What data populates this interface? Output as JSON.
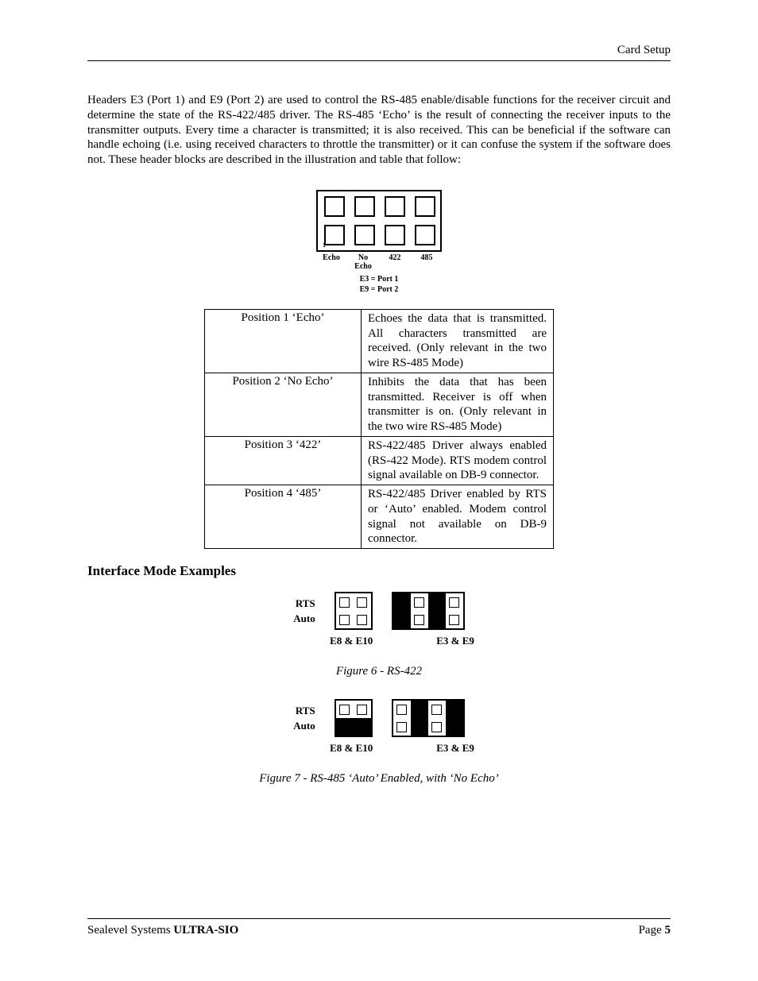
{
  "header": {
    "right": "Card Setup"
  },
  "footer": {
    "left_a": "Sealevel Systems ",
    "left_b": "ULTRA-SIO",
    "right_a": "Page ",
    "right_b": "5"
  },
  "paragraph": "Headers E3 (Port 1) and E9 (Port 2) are used to control the RS-485 enable/disable functions for the receiver circuit and determine the state of the RS-422/485 driver. The RS-485 ‘Echo’ is the result of connecting the receiver inputs to the transmitter outputs. Every time a character is transmitted; it is also received. This can be beneficial if the software can handle echoing (i.e. using received characters to throttle the transmitter) or it can confuse the system if the software does not. These header blocks are described in the illustration and table that follow:",
  "top_jumper": {
    "rows": 2,
    "cols": 4,
    "col_labels": [
      "Echo",
      "No\nEcho",
      "422",
      "485"
    ],
    "port_lines": [
      "E3 = Port 1",
      "E9 = Port 2"
    ]
  },
  "table": {
    "rows": [
      {
        "pos": "Position 1 ‘Echo’",
        "desc": "Echoes the data that is transmitted. All characters transmitted are received.  (Only relevant in the two wire RS-485 Mode)"
      },
      {
        "pos": "Position 2 ‘No Echo’",
        "desc": "Inhibits the data that has been transmitted. Receiver is off when transmitter is on. (Only relevant in the two wire RS-485 Mode)"
      },
      {
        "pos": "Position 3 ‘422’",
        "desc": "RS-422/485 Driver always enabled (RS-422 Mode). RTS modem control signal available on DB-9 connector."
      },
      {
        "pos": "Position 4 ‘485’",
        "desc": "RS-422/485 Driver enabled by RTS or ‘Auto’ enabled. Modem control signal not available on DB-9 connector."
      }
    ]
  },
  "section_heading": "Interface Mode Examples",
  "examples": [
    {
      "row_labels": [
        "RTS",
        "Auto"
      ],
      "blocks": [
        {
          "name": "E8 & E10",
          "cols": 2,
          "grid": [
            [
              "o",
              "o"
            ],
            [
              "o",
              "o"
            ]
          ]
        },
        {
          "name": "E3 & E9",
          "cols": 4,
          "grid": [
            [
              "f",
              "o",
              "f",
              "o"
            ],
            [
              "f",
              "o",
              "f",
              "o"
            ]
          ]
        }
      ],
      "caption": "Figure 6 - RS-422"
    },
    {
      "row_labels": [
        "RTS",
        "Auto"
      ],
      "blocks": [
        {
          "name": "E8 & E10",
          "cols": 2,
          "grid": [
            [
              "o",
              "o"
            ],
            [
              "f",
              "f"
            ]
          ]
        },
        {
          "name": "E3 & E9",
          "cols": 4,
          "grid": [
            [
              "o",
              "f",
              "o",
              "f"
            ],
            [
              "o",
              "f",
              "o",
              "f"
            ]
          ]
        }
      ],
      "caption": "Figure 7 - RS-485 ‘Auto’ Enabled, with ‘No Echo’"
    }
  ]
}
